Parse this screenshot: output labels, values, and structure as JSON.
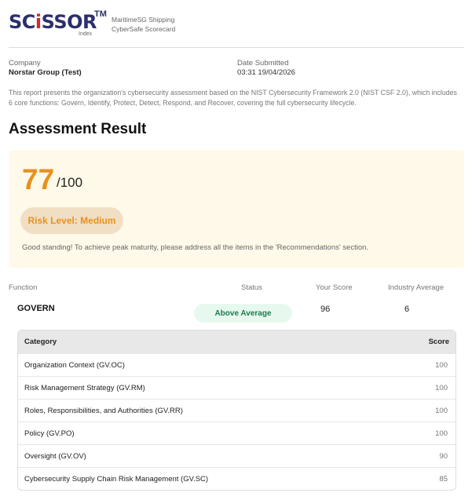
{
  "header": {
    "logo_text": "SCiSSOR",
    "logo_tm": "TM",
    "logo_sub": "Index",
    "tagline_1": "MaritimeSG Shipping",
    "tagline_2": "CyberSafe Scorecard"
  },
  "info": {
    "company_label": "Company",
    "company_value": "Norstar Group (Test)",
    "date_label": "Date Submitted",
    "date_value": "03:31 19/04/2026"
  },
  "description": "This report presents the organization's cybersecurity assessment based on the NIST Cybersecurity Framework 2.0 (NIST CSF 2.0), which includes 6 core functions: Govern, Identify, Protect, Detect, Respond, and Recover, covering the full cybersecurity lifecycle.",
  "result": {
    "title": "Assessment Result",
    "score": "77",
    "out_of": "/100",
    "risk": "Risk Level: Medium",
    "message": "Good standing! To achieve peak maturity, please address all the items in the 'Recommendations' section.",
    "accent": "#e8911c"
  },
  "functions": {
    "headers": {
      "function": "Function",
      "status": "Status",
      "your_score": "Your Score",
      "industry": "Industry Average"
    },
    "govern": {
      "name": "GOVERN",
      "status": "Above Average",
      "your_score": "96",
      "industry": "6"
    }
  },
  "categories": {
    "header_category": "Category",
    "header_score": "Score",
    "rows": [
      {
        "name": "Organization Context (GV.OC)",
        "score": "100"
      },
      {
        "name": "Risk Management Strategy (GV.RM)",
        "score": "100"
      },
      {
        "name": "Roles, Responsibilities, and Authorities (GV.RR)",
        "score": "100"
      },
      {
        "name": "Policy (GV.PO)",
        "score": "100"
      },
      {
        "name": "Oversight (GV.OV)",
        "score": "90"
      },
      {
        "name": "Cybersecurity Supply Chain Risk Management (GV.SC)",
        "score": "85"
      }
    ]
  }
}
